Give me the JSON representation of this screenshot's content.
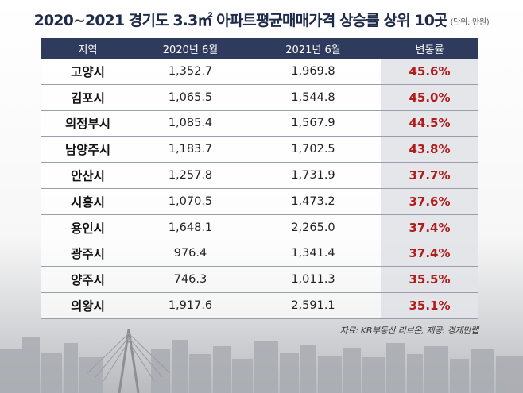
{
  "chart_data": {
    "type": "table",
    "title": "2020~2021 경기도 3.3㎡ 아파트평균매매가격 상승률 상위 10곳",
    "unit_note": "(단위: 만원)",
    "columns": [
      "지역",
      "2020년 6월",
      "2021년 6월",
      "변동률"
    ],
    "rows": [
      {
        "region": "고양시",
        "v2020": "1,352.7",
        "v2021": "1,969.8",
        "rate": "45.6%"
      },
      {
        "region": "김포시",
        "v2020": "1,065.5",
        "v2021": "1,544.8",
        "rate": "45.0%"
      },
      {
        "region": "의정부시",
        "v2020": "1,085.4",
        "v2021": "1,567.9",
        "rate": "44.5%"
      },
      {
        "region": "남양주시",
        "v2020": "1,183.7",
        "v2021": "1,702.5",
        "rate": "43.8%"
      },
      {
        "region": "안산시",
        "v2020": "1,257.8",
        "v2021": "1,731.9",
        "rate": "37.7%"
      },
      {
        "region": "시흥시",
        "v2020": "1,070.5",
        "v2021": "1,473.2",
        "rate": "37.6%"
      },
      {
        "region": "용인시",
        "v2020": "1,648.1",
        "v2021": "2,265.0",
        "rate": "37.4%"
      },
      {
        "region": "광주시",
        "v2020": "976.4",
        "v2021": "1,341.4",
        "rate": "37.4%"
      },
      {
        "region": "양주시",
        "v2020": "746.3",
        "v2021": "1,011.3",
        "rate": "35.5%"
      },
      {
        "region": "의왕시",
        "v2020": "1,917.6",
        "v2021": "2,591.1",
        "rate": "35.1%"
      }
    ],
    "source": "자료: KB부동산 리브온, 제공: 경제만랩"
  },
  "colors": {
    "header_bg": "#2f3b5c",
    "title_text": "#1f2b4a",
    "rate_text": "#b01c1c",
    "rate_bg": "#e2e4e8"
  }
}
